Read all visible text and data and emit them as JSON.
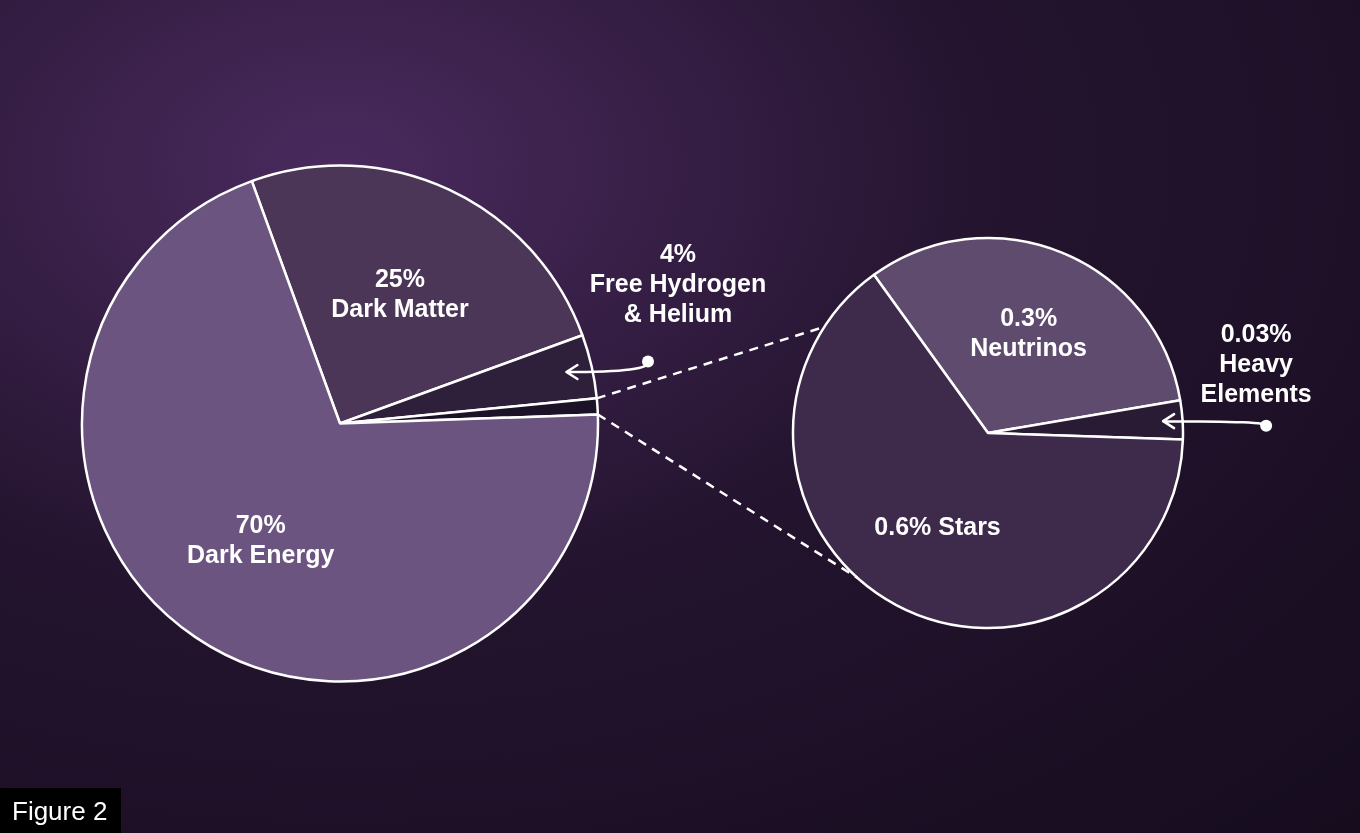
{
  "chart_data": [
    {
      "type": "pie",
      "categories": [
        "Dark Matter",
        "Free Hydrogen & Helium",
        null,
        "Dark Energy"
      ],
      "values": [
        25,
        4,
        1,
        70
      ],
      "colors": [
        "#4b3658",
        "#2e1f3b",
        "#1c1227",
        "#6b5580"
      ],
      "value_labels": [
        "25%",
        "4%",
        null,
        "70%"
      ],
      "annotations": [
        "Figure 2"
      ]
    },
    {
      "type": "pie",
      "categories": [
        "Neutrinos",
        "Heavy Elements",
        "Stars"
      ],
      "values": [
        0.3,
        0.03,
        0.6
      ],
      "colors": [
        "#5f4b6e",
        "#291b34",
        "#3e2b4c"
      ],
      "value_labels": [
        "0.3%",
        "0.03%",
        "0.6%"
      ]
    }
  ]
}
